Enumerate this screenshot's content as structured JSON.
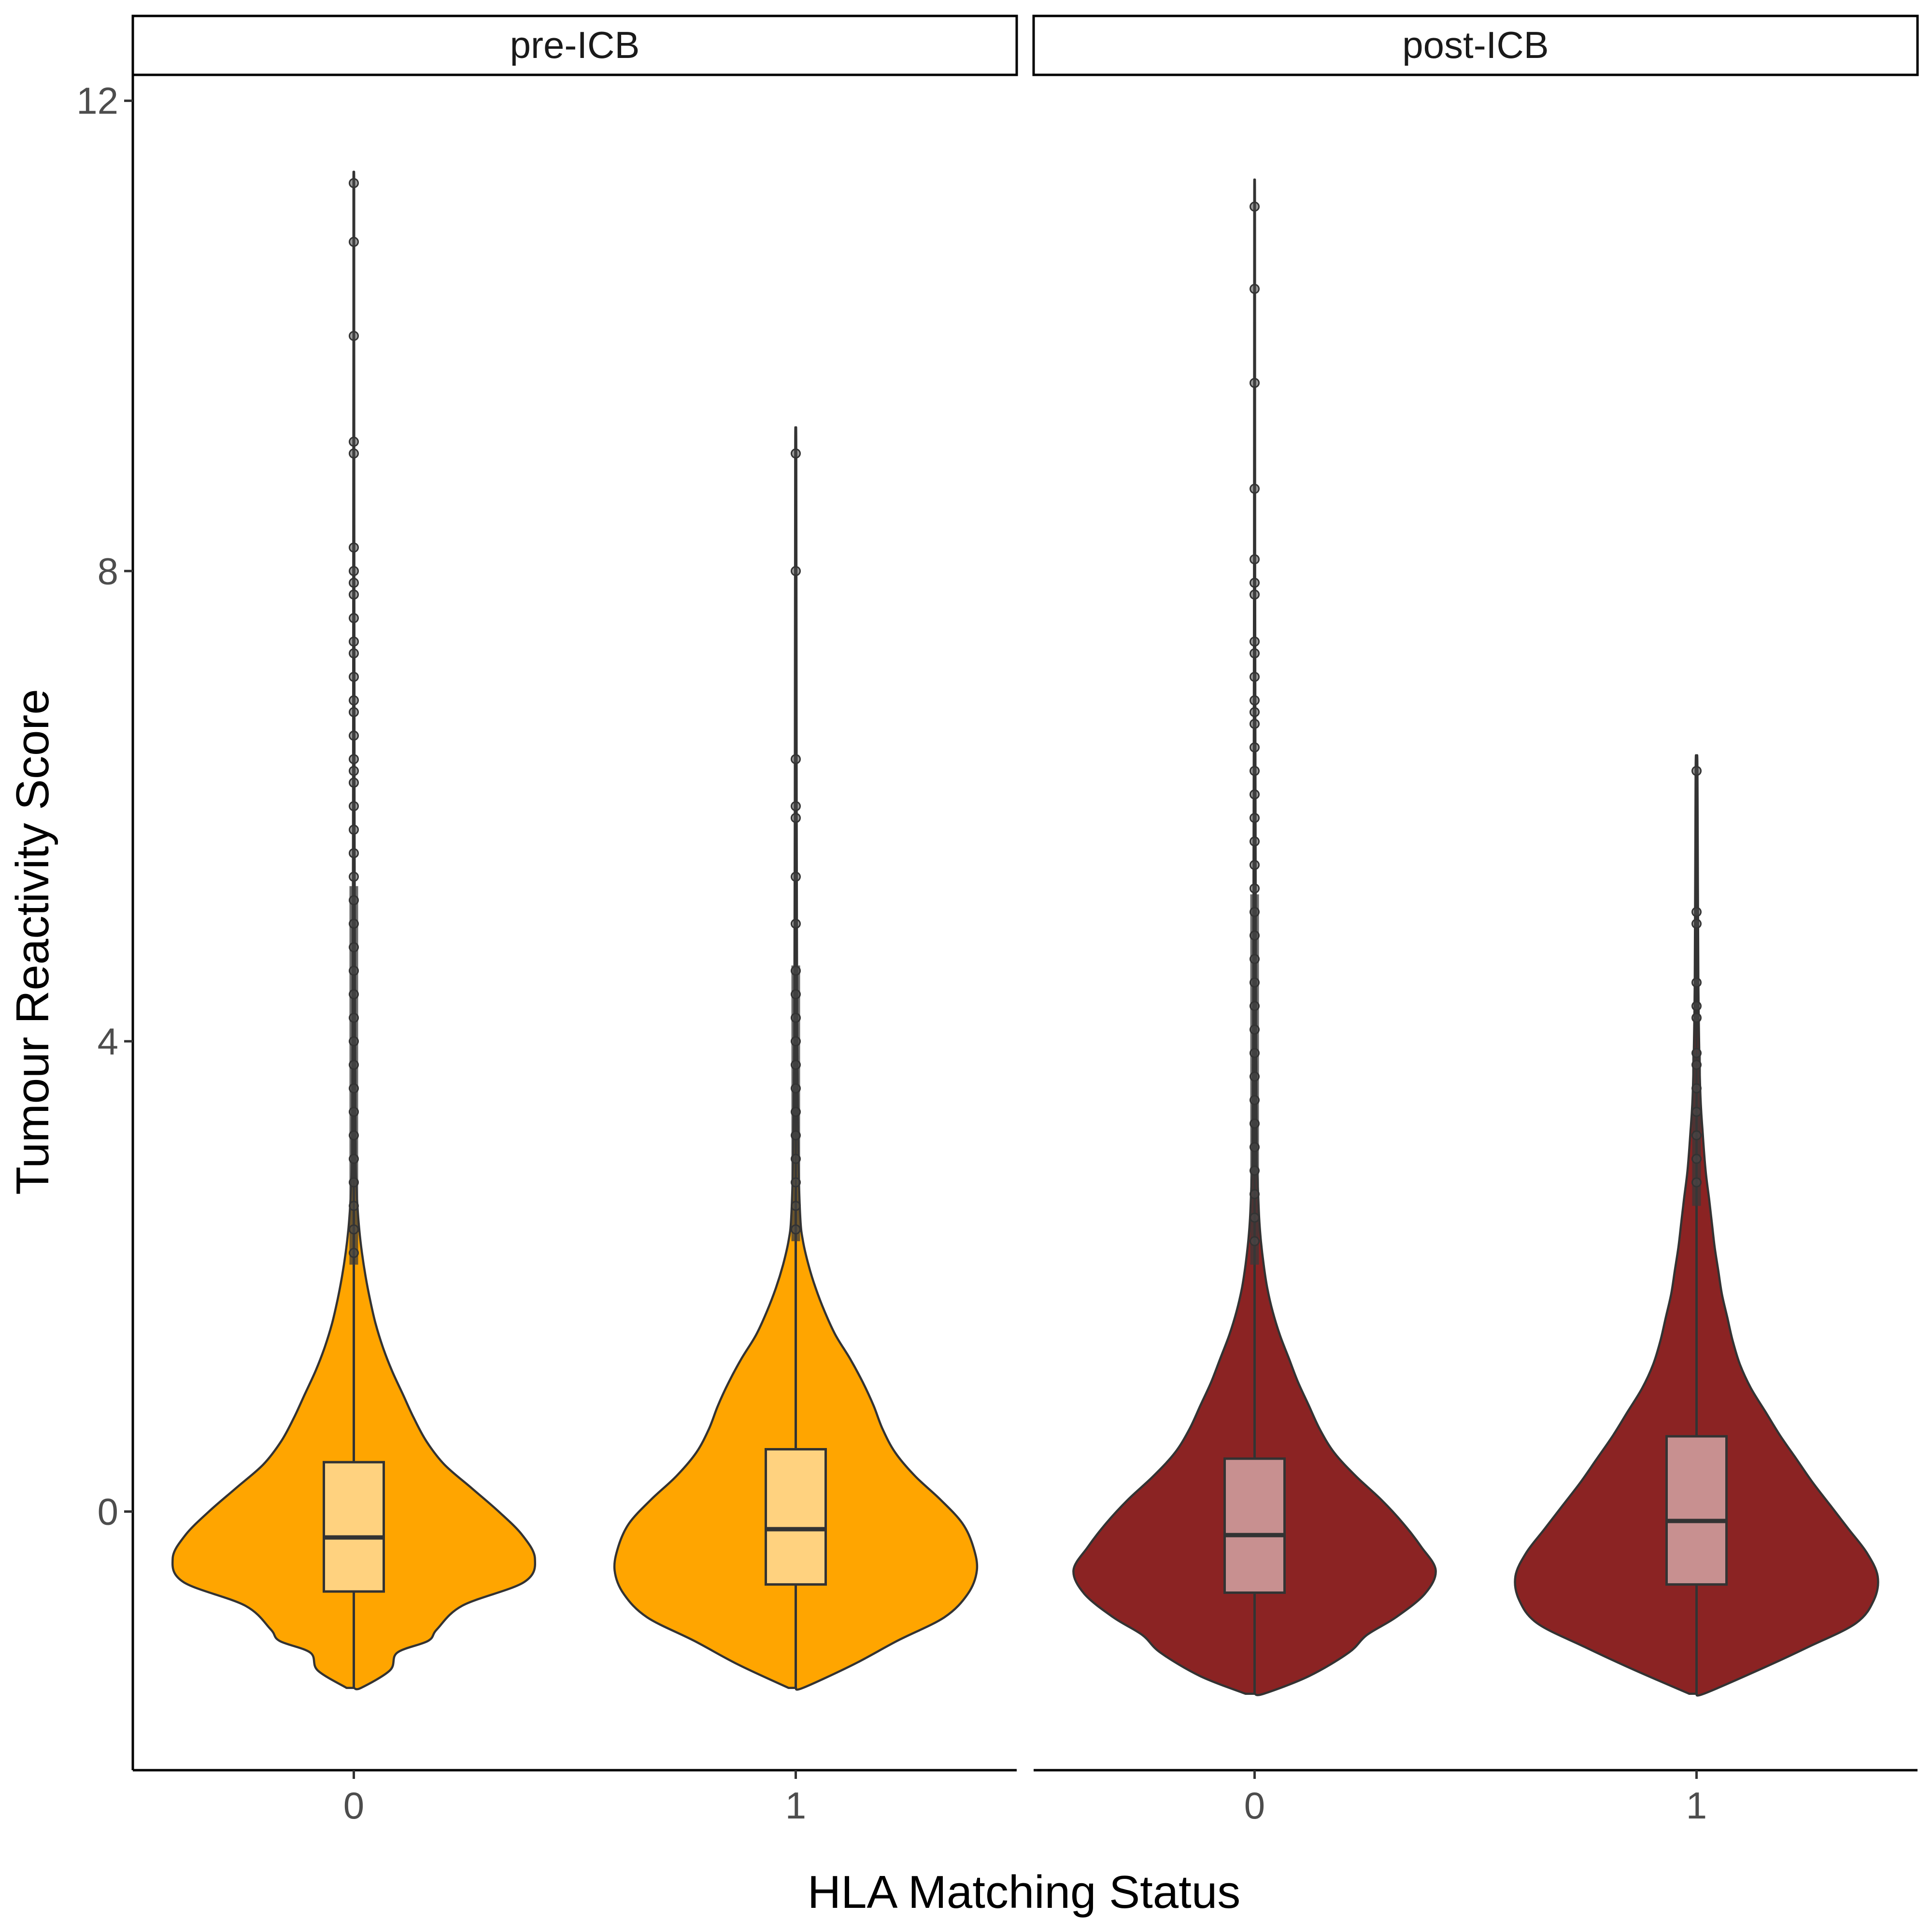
{
  "chart_data": {
    "type": "violin",
    "ylabel": "Tumour Reactivity Score",
    "xlabel": "HLA Matching Status",
    "ylim": [
      -2.2,
      12.2
    ],
    "y_ticks": [
      "0",
      "4",
      "8",
      "12"
    ],
    "y_tick_values": [
      0,
      4,
      8,
      12
    ],
    "grid": false,
    "legend": "none",
    "panels": [
      {
        "strip": "pre-ICB",
        "fill": "#FFA500",
        "box_fill": "#FFD27F",
        "groups": [
          {
            "category": "0",
            "min": -1.5,
            "q1": -0.68,
            "median": -0.22,
            "q3": 0.42,
            "max": 2.1,
            "outliers": [
              11.3,
              10.8,
              10.0,
              9.1,
              9.0,
              8.2,
              8.0,
              7.9,
              7.8,
              7.6,
              7.4,
              7.3,
              7.1,
              6.9,
              6.8,
              6.6,
              6.4,
              6.3,
              6.2,
              6.0,
              5.8,
              5.6,
              5.4,
              5.2,
              5.0,
              4.8,
              4.6,
              4.4,
              4.2,
              4.0,
              3.8,
              3.6,
              3.4,
              3.2,
              3.0,
              2.8,
              2.6,
              2.4,
              2.2
            ],
            "density_y": [
              -1.5,
              -1.35,
              -1.2,
              -1.1,
              -1.0,
              -0.8,
              -0.6,
              -0.4,
              -0.2,
              0.0,
              0.2,
              0.4,
              0.6,
              0.8,
              1.0,
              1.2,
              1.4,
              1.6,
              1.8,
              2.0,
              2.2,
              2.4,
              2.6,
              2.8,
              3.0,
              4.0,
              6.0,
              8.0,
              10.0,
              11.3
            ],
            "density_w": [
              0.04,
              0.2,
              0.24,
              0.41,
              0.46,
              0.6,
              0.94,
              1.0,
              0.93,
              0.8,
              0.65,
              0.5,
              0.4,
              0.33,
              0.27,
              0.21,
              0.16,
              0.12,
              0.09,
              0.065,
              0.045,
              0.03,
              0.02,
              0.014,
              0.01,
              0.007,
              0.004,
              0.003,
              0.002,
              0.002
            ]
          },
          {
            "category": "1",
            "min": -1.5,
            "q1": -0.62,
            "median": -0.15,
            "q3": 0.53,
            "max": 2.3,
            "outliers": [
              9.0,
              8.0,
              6.4,
              6.0,
              5.9,
              5.4,
              5.0,
              4.6,
              4.4,
              4.2,
              4.0,
              3.8,
              3.6,
              3.4,
              3.2,
              3.0,
              2.8,
              2.6,
              2.4
            ],
            "density_y": [
              -1.5,
              -1.3,
              -1.1,
              -0.9,
              -0.7,
              -0.5,
              -0.3,
              -0.1,
              0.1,
              0.3,
              0.5,
              0.7,
              0.9,
              1.1,
              1.3,
              1.5,
              1.7,
              1.9,
              2.1,
              2.3,
              2.5,
              3.0,
              4.0,
              6.0,
              9.0
            ],
            "density_w": [
              0.04,
              0.32,
              0.56,
              0.82,
              0.95,
              1.0,
              0.98,
              0.92,
              0.8,
              0.66,
              0.55,
              0.48,
              0.43,
              0.37,
              0.3,
              0.22,
              0.16,
              0.11,
              0.07,
              0.04,
              0.025,
              0.015,
              0.008,
              0.005,
              0.003
            ]
          }
        ]
      },
      {
        "strip": "post-ICB",
        "fill": "#8B2323",
        "box_fill": "#C89090",
        "groups": [
          {
            "category": "0",
            "min": -1.55,
            "q1": -0.69,
            "median": -0.2,
            "q3": 0.45,
            "max": 2.1,
            "outliers": [
              11.1,
              10.4,
              9.6,
              8.7,
              8.1,
              7.9,
              7.8,
              7.4,
              7.3,
              7.1,
              6.9,
              6.8,
              6.7,
              6.5,
              6.3,
              6.1,
              5.9,
              5.7,
              5.5,
              5.3,
              5.1,
              4.9,
              4.7,
              4.5,
              4.3,
              4.1,
              3.9,
              3.7,
              3.5,
              3.3,
              3.1,
              2.9,
              2.7,
              2.5,
              2.3
            ],
            "density_y": [
              -1.55,
              -1.4,
              -1.2,
              -1.05,
              -0.9,
              -0.7,
              -0.5,
              -0.3,
              -0.1,
              0.1,
              0.3,
              0.5,
              0.7,
              0.9,
              1.1,
              1.3,
              1.5,
              1.7,
              1.9,
              2.1,
              2.3,
              2.5,
              2.8,
              3.0,
              4.0,
              6.0,
              8.0,
              11.1
            ],
            "density_w": [
              0.05,
              0.3,
              0.52,
              0.62,
              0.78,
              0.94,
              1.0,
              0.92,
              0.82,
              0.7,
              0.56,
              0.44,
              0.36,
              0.3,
              0.24,
              0.19,
              0.14,
              0.1,
              0.07,
              0.05,
              0.035,
              0.025,
              0.017,
              0.012,
              0.008,
              0.005,
              0.003,
              0.002
            ]
          },
          {
            "category": "1",
            "min": -1.55,
            "q1": -0.62,
            "median": -0.08,
            "q3": 0.64,
            "max": 2.6,
            "outliers": [
              6.3,
              5.1,
              5.0,
              4.5,
              4.3,
              4.2,
              3.9,
              3.8,
              3.6,
              3.4,
              3.2,
              3.0,
              2.8
            ],
            "density_y": [
              -1.55,
              -1.35,
              -1.15,
              -0.95,
              -0.75,
              -0.55,
              -0.35,
              -0.15,
              0.05,
              0.25,
              0.45,
              0.65,
              0.85,
              1.05,
              1.25,
              1.45,
              1.65,
              1.85,
              2.05,
              2.25,
              2.45,
              2.65,
              2.9,
              3.2,
              3.6,
              4.5,
              6.3
            ],
            "density_w": [
              0.04,
              0.34,
              0.62,
              0.88,
              0.98,
              1.0,
              0.94,
              0.84,
              0.74,
              0.64,
              0.55,
              0.46,
              0.38,
              0.3,
              0.24,
              0.2,
              0.17,
              0.14,
              0.12,
              0.1,
              0.085,
              0.07,
              0.05,
              0.035,
              0.02,
              0.01,
              0.005
            ]
          }
        ]
      }
    ]
  }
}
